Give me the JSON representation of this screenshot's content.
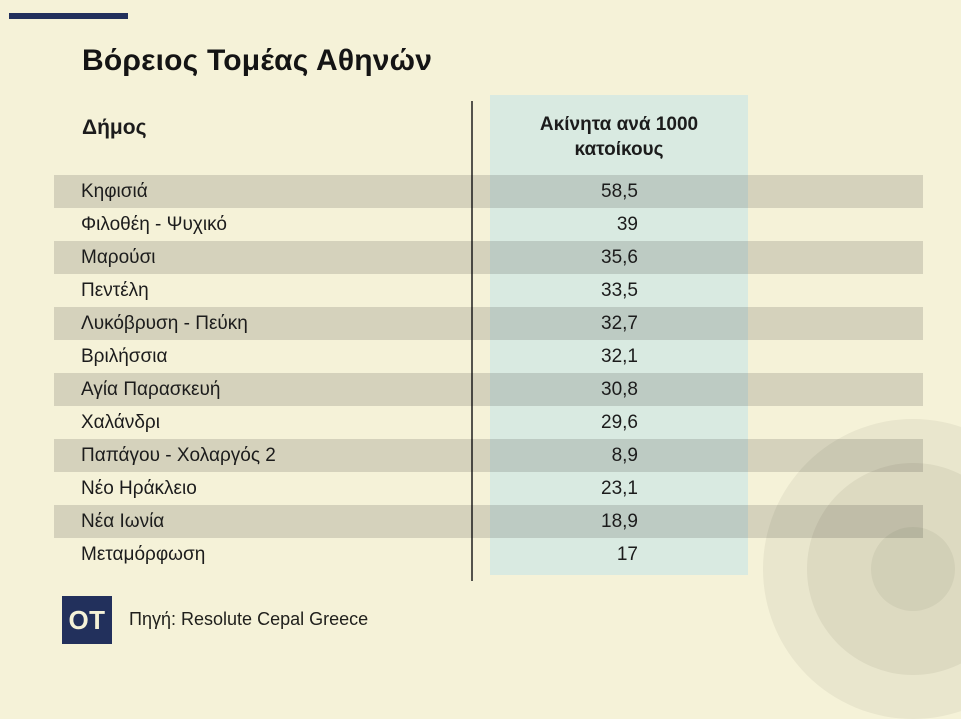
{
  "colors": {
    "background": "#f5f2d8",
    "mint": "#d9eae1",
    "navy": "#22305c",
    "text": "#1c1c1c",
    "divider": "#54534d"
  },
  "header": {
    "title": "Βόρειος Τομέας Αθηνών"
  },
  "table": {
    "municipality_header": "Δήμος",
    "value_header_line1": "Ακίνητα ανά 1000",
    "value_header_line2": "κατοίκους",
    "rows": [
      {
        "name": "Κηφισιά",
        "value": "58,5"
      },
      {
        "name": "Φιλοθέη - Ψυχικό",
        "value": "39"
      },
      {
        "name": "Μαρούσι",
        "value": "35,6"
      },
      {
        "name": "Πεντέλη",
        "value": "33,5"
      },
      {
        "name": "Λυκόβρυση - Πεύκη",
        "value": "32,7"
      },
      {
        "name": "Βριλήσσια",
        "value": "32,1"
      },
      {
        "name": "Αγία Παρασκευή",
        "value": "30,8"
      },
      {
        "name": "Χαλάνδρι",
        "value": "29,6"
      },
      {
        "name": "Παπάγου - Χολαργός 2",
        "value": "8,9"
      },
      {
        "name": "Νέο Ηράκλειο",
        "value": "23,1"
      },
      {
        "name": "Νέα Ιωνία",
        "value": "18,9"
      },
      {
        "name": "Μεταμόρφωση",
        "value": "17"
      }
    ]
  },
  "footer": {
    "logo_text": "OT",
    "source": "Πηγή: Resolute Cepal Greece"
  },
  "chart_data": {
    "type": "table",
    "title": "Βόρειος Τομέας Αθηνών",
    "columns": [
      "Δήμος",
      "Ακίνητα ανά 1000 κατοίκους"
    ],
    "rows": [
      [
        "Κηφισιά",
        58.5
      ],
      [
        "Φιλοθέη - Ψυχικό",
        39
      ],
      [
        "Μαρούσι",
        35.6
      ],
      [
        "Πεντέλη",
        33.5
      ],
      [
        "Λυκόβρυση - Πεύκη",
        32.7
      ],
      [
        "Βριλήσσια",
        32.1
      ],
      [
        "Αγία Παρασκευή",
        30.8
      ],
      [
        "Χαλάνδρι",
        29.6
      ],
      [
        "Παπάγου - Χολαργός 2",
        8.9
      ],
      [
        "Νέο Ηράκλειο",
        23.1
      ],
      [
        "Νέα Ιωνία",
        18.9
      ],
      [
        "Μεταμόρφωση",
        17
      ]
    ],
    "source": "Πηγή: Resolute Cepal Greece",
    "layout": {
      "zebra_striping": true,
      "value_column_highlight": "#d9eae1"
    }
  }
}
